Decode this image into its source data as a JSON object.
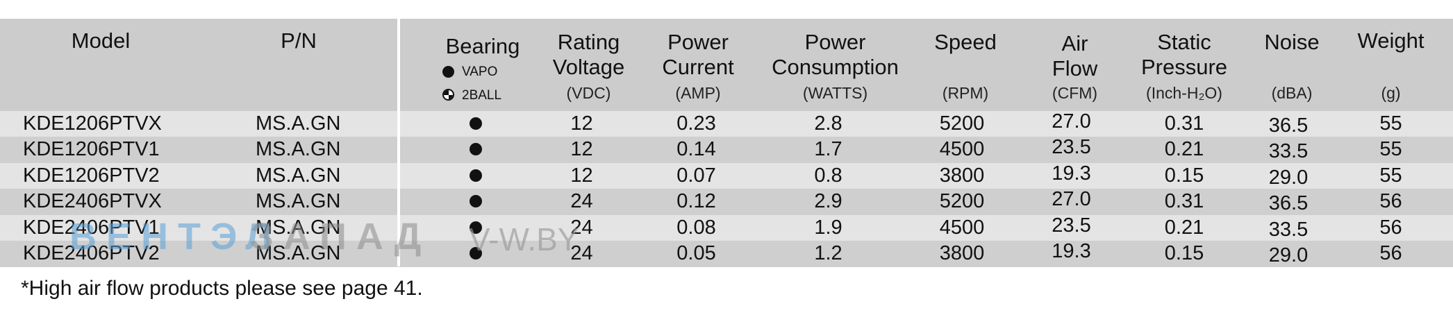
{
  "headers": {
    "model": "Model",
    "pn": "P/N",
    "bearing": "Bearing",
    "bearing_vapo": "VAPO",
    "bearing_2ball": "2BALL",
    "voltage_l1": "Rating",
    "voltage_l2": "Voltage",
    "voltage_unit": "(VDC)",
    "current_l1": "Power",
    "current_l2": "Current",
    "current_unit": "(AMP)",
    "consumption_l1": "Power",
    "consumption_l2": "Consumption",
    "consumption_unit": "(WATTS)",
    "speed": "Speed",
    "speed_unit": "(RPM)",
    "airflow_l1": "Air",
    "airflow_l2": "Flow",
    "airflow_unit": "(CFM)",
    "pressure_l1": "Static",
    "pressure_l2": "Pressure",
    "pressure_unit": "(Inch-H₂O)",
    "noise": "Noise",
    "noise_unit": "(dBA)",
    "weight": "Weight",
    "weight_unit": "(g)"
  },
  "rows": [
    {
      "model": "KDE1206PTVX",
      "pn": "MS.A.GN",
      "bearing": "VAPO",
      "voltage": "12",
      "current": "0.23",
      "watts": "2.8",
      "rpm": "5200",
      "cfm": "27.0",
      "pressure": "0.31",
      "noise": "36.5",
      "weight": "55"
    },
    {
      "model": "KDE1206PTV1",
      "pn": "MS.A.GN",
      "bearing": "VAPO",
      "voltage": "12",
      "current": "0.14",
      "watts": "1.7",
      "rpm": "4500",
      "cfm": "23.5",
      "pressure": "0.21",
      "noise": "33.5",
      "weight": "55"
    },
    {
      "model": "KDE1206PTV2",
      "pn": "MS.A.GN",
      "bearing": "VAPO",
      "voltage": "12",
      "current": "0.07",
      "watts": "0.8",
      "rpm": "3800",
      "cfm": "19.3",
      "pressure": "0.15",
      "noise": "29.0",
      "weight": "55"
    },
    {
      "model": "KDE2406PTVX",
      "pn": "MS.A.GN",
      "bearing": "VAPO",
      "voltage": "24",
      "current": "0.12",
      "watts": "2.9",
      "rpm": "5200",
      "cfm": "27.0",
      "pressure": "0.31",
      "noise": "36.5",
      "weight": "56"
    },
    {
      "model": "KDE2406PTV1",
      "pn": "MS.A.GN",
      "bearing": "VAPO",
      "voltage": "24",
      "current": "0.08",
      "watts": "1.9",
      "rpm": "4500",
      "cfm": "23.5",
      "pressure": "0.21",
      "noise": "33.5",
      "weight": "56"
    },
    {
      "model": "KDE2406PTV2",
      "pn": "MS.A.GN",
      "bearing": "VAPO",
      "voltage": "24",
      "current": "0.05",
      "watts": "1.2",
      "rpm": "3800",
      "cfm": "19.3",
      "pressure": "0.15",
      "noise": "29.0",
      "weight": "56"
    }
  ],
  "footnote": "*High air flow products please see page 41.",
  "watermark": {
    "part1": "ВЕНТЭЛ",
    "part2": "ЗАПАД",
    "site": "V-W.BY"
  },
  "colors": {
    "header_bg": "#cccccc",
    "row_light": "#e4e4e4",
    "row_dark": "#cfcfcf",
    "watermark_blue": "#5aa0d6",
    "watermark_gray": "#8c8c8c"
  }
}
